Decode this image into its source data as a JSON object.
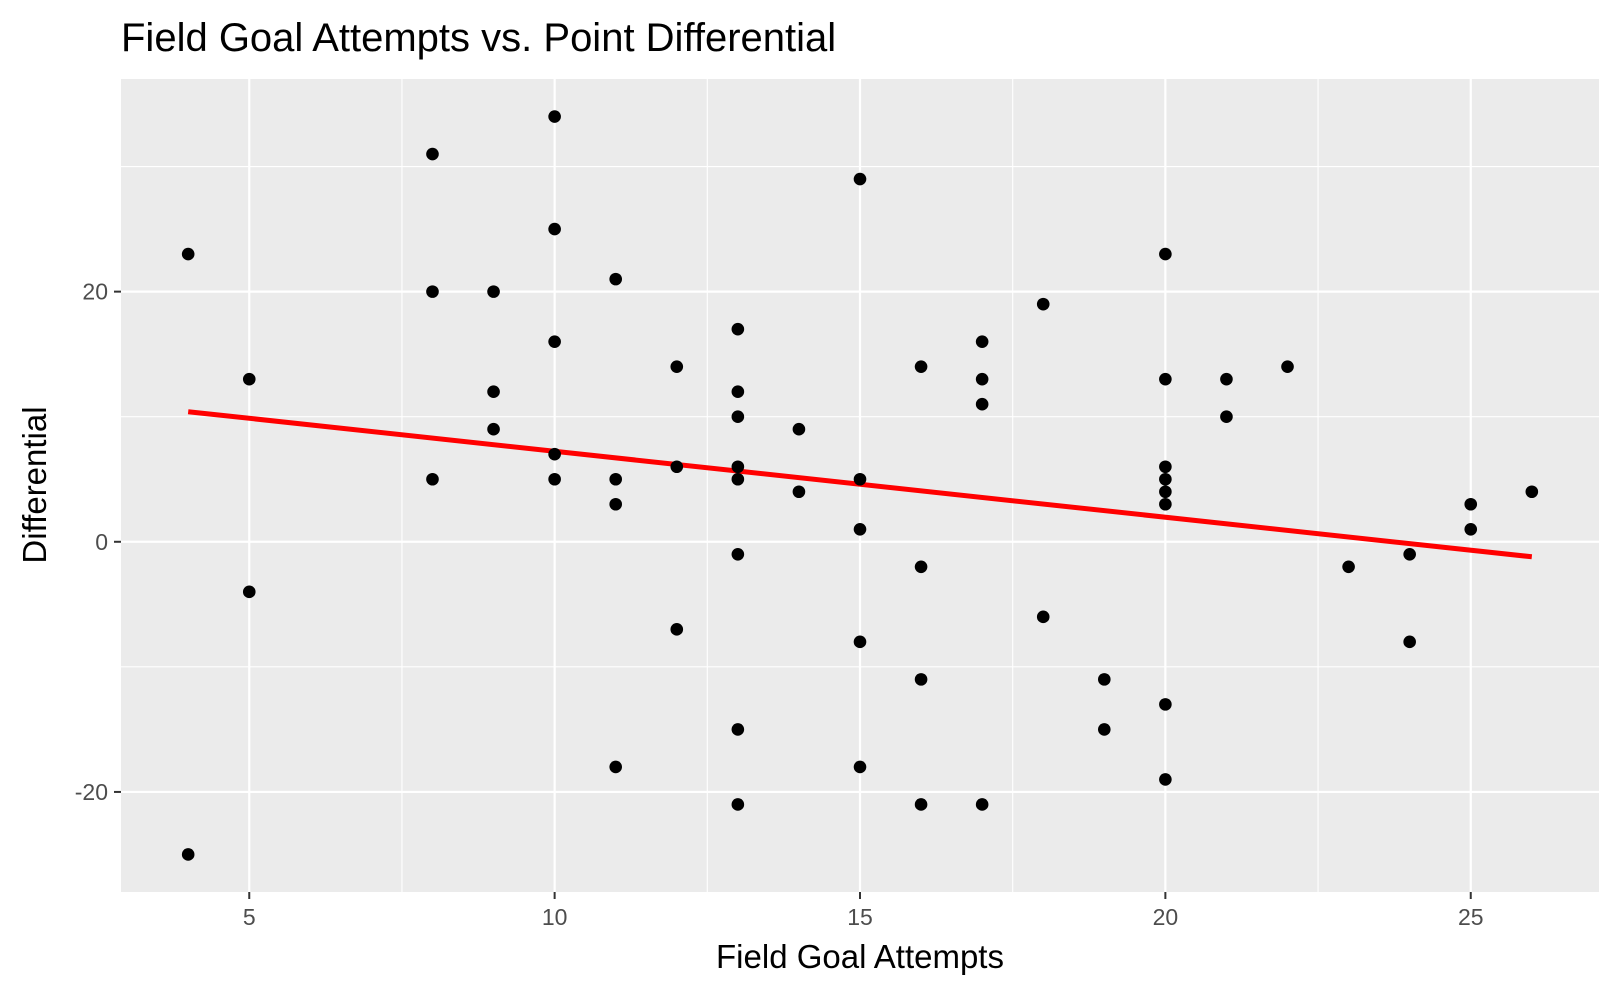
{
  "chart_data": {
    "type": "scatter",
    "title": "Field Goal Attempts vs. Point Differential",
    "xlabel": "Field Goal Attempts",
    "ylabel": "Differential",
    "xlim": [
      2.9,
      27.1
    ],
    "ylim": [
      -28,
      37
    ],
    "x_ticks": [
      5,
      10,
      15,
      20,
      25
    ],
    "x_tick_labels": [
      "5",
      "10",
      "15",
      "20",
      "25"
    ],
    "y_ticks": [
      -20,
      0,
      20
    ],
    "y_tick_labels": [
      "-20",
      "0",
      "20"
    ],
    "grid": true,
    "legend": "none",
    "colors": {
      "panel_background": "#ebebeb",
      "grid": "#ffffff",
      "points": "#000000",
      "trend_line": "#ff0000"
    },
    "series": [
      {
        "type": "scatter",
        "points": [
          {
            "x": 4,
            "y": 23
          },
          {
            "x": 4,
            "y": -25
          },
          {
            "x": 5,
            "y": 13
          },
          {
            "x": 5,
            "y": -4
          },
          {
            "x": 8,
            "y": 31
          },
          {
            "x": 8,
            "y": 20
          },
          {
            "x": 8,
            "y": 5
          },
          {
            "x": 9,
            "y": 20
          },
          {
            "x": 9,
            "y": 12
          },
          {
            "x": 9,
            "y": 9
          },
          {
            "x": 10,
            "y": 34
          },
          {
            "x": 10,
            "y": 25
          },
          {
            "x": 10,
            "y": 16
          },
          {
            "x": 10,
            "y": 7
          },
          {
            "x": 10,
            "y": 5
          },
          {
            "x": 11,
            "y": 21
          },
          {
            "x": 11,
            "y": 5
          },
          {
            "x": 11,
            "y": 3
          },
          {
            "x": 11,
            "y": -18
          },
          {
            "x": 12,
            "y": 14
          },
          {
            "x": 12,
            "y": 6
          },
          {
            "x": 12,
            "y": -7
          },
          {
            "x": 13,
            "y": 17
          },
          {
            "x": 13,
            "y": 12
          },
          {
            "x": 13,
            "y": 10
          },
          {
            "x": 13,
            "y": 6
          },
          {
            "x": 13,
            "y": 5
          },
          {
            "x": 13,
            "y": -1
          },
          {
            "x": 13,
            "y": -15
          },
          {
            "x": 13,
            "y": -21
          },
          {
            "x": 14,
            "y": 9
          },
          {
            "x": 14,
            "y": 4
          },
          {
            "x": 15,
            "y": 29
          },
          {
            "x": 15,
            "y": 5
          },
          {
            "x": 15,
            "y": 1
          },
          {
            "x": 15,
            "y": -8
          },
          {
            "x": 15,
            "y": -18
          },
          {
            "x": 16,
            "y": 14
          },
          {
            "x": 16,
            "y": -2
          },
          {
            "x": 16,
            "y": -11
          },
          {
            "x": 16,
            "y": -21
          },
          {
            "x": 17,
            "y": 16
          },
          {
            "x": 17,
            "y": 13
          },
          {
            "x": 17,
            "y": 11
          },
          {
            "x": 17,
            "y": -21
          },
          {
            "x": 18,
            "y": 19
          },
          {
            "x": 18,
            "y": -6
          },
          {
            "x": 19,
            "y": -11
          },
          {
            "x": 19,
            "y": -15
          },
          {
            "x": 20,
            "y": 23
          },
          {
            "x": 20,
            "y": 13
          },
          {
            "x": 20,
            "y": 6
          },
          {
            "x": 20,
            "y": 5
          },
          {
            "x": 20,
            "y": 4
          },
          {
            "x": 20,
            "y": 3
          },
          {
            "x": 20,
            "y": -13
          },
          {
            "x": 20,
            "y": -19
          },
          {
            "x": 21,
            "y": 13
          },
          {
            "x": 21,
            "y": 10
          },
          {
            "x": 22,
            "y": 14
          },
          {
            "x": 23,
            "y": -2
          },
          {
            "x": 24,
            "y": -1
          },
          {
            "x": 24,
            "y": -8
          },
          {
            "x": 25,
            "y": 3
          },
          {
            "x": 25,
            "y": 1
          },
          {
            "x": 26,
            "y": 4
          }
        ]
      },
      {
        "type": "line",
        "points": [
          {
            "x": 4,
            "y": 10.4
          },
          {
            "x": 26,
            "y": -1.2
          }
        ]
      }
    ]
  }
}
